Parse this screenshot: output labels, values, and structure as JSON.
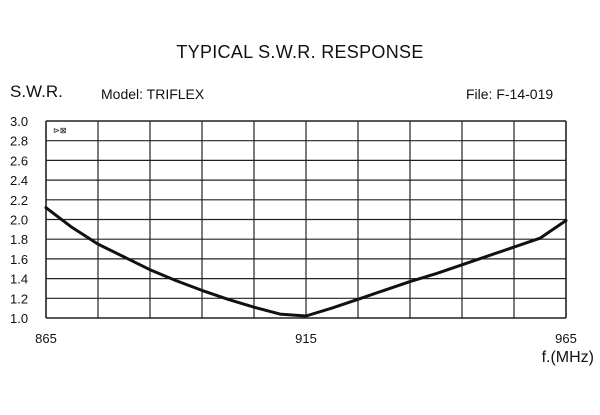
{
  "chart_data": {
    "type": "line",
    "title": "TYPICAL S.W.R. RESPONSE",
    "ylabel": "S.W.R.",
    "xlabel": "f.(MHz)",
    "model_text": "Model: TRIFLEX",
    "file_text": "File: F-14-019",
    "xlim": [
      865,
      965
    ],
    "ylim": [
      1.0,
      3.0
    ],
    "x_ticks": [
      865,
      915,
      965
    ],
    "y_ticks": [
      "1.0",
      "1.2",
      "1.4",
      "1.6",
      "1.8",
      "2.0",
      "2.2",
      "2.4",
      "2.6",
      "2.8",
      "3.0"
    ],
    "grid": true,
    "series": [
      {
        "x": [
          865,
          870,
          875,
          880,
          885,
          890,
          895,
          900,
          905,
          910,
          915,
          920,
          925,
          930,
          935,
          940,
          945,
          950,
          955,
          960,
          965
        ],
        "y": [
          2.12,
          1.92,
          1.75,
          1.62,
          1.49,
          1.38,
          1.28,
          1.19,
          1.11,
          1.04,
          1.02,
          1.1,
          1.19,
          1.28,
          1.37,
          1.45,
          1.54,
          1.63,
          1.72,
          1.81,
          1.99
        ]
      }
    ]
  },
  "colors": {
    "line": "#111111",
    "grid": "#222222",
    "background": "#ffffff"
  },
  "marker_glyph": "⊳⊠"
}
